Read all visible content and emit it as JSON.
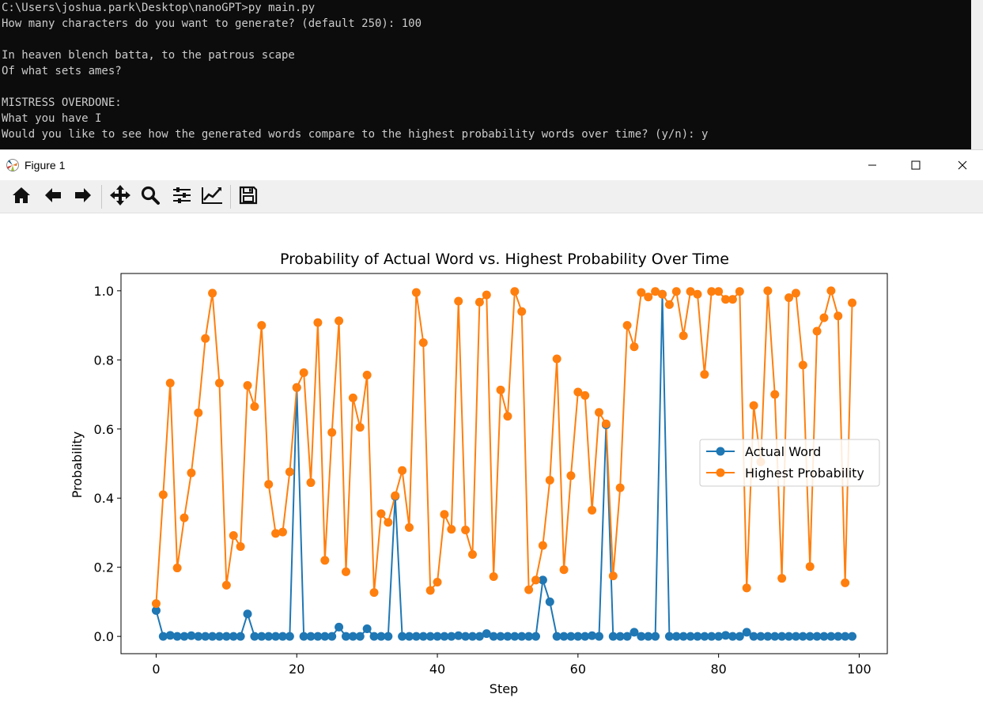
{
  "terminal": {
    "lines": [
      "C:\\Users\\joshua.park\\Desktop\\nanoGPT>py main.py",
      "How many characters do you want to generate? (default 250): 100",
      "",
      "In heaven blench batta, to the patrous scape",
      "Of what sets ames?",
      "",
      "MISTRESS OVERDONE:",
      "What you have I",
      "Would you like to see how the generated words compare to the highest probability words over time? (y/n): y"
    ]
  },
  "figure_window": {
    "title": "Figure 1",
    "icon": "matplotlib-icon",
    "controls": [
      "minimize-icon",
      "maximize-icon",
      "close-icon"
    ]
  },
  "toolbar": {
    "buttons": [
      "home-icon",
      "back-arrow-icon",
      "forward-arrow-icon",
      "pan-icon",
      "zoom-icon",
      "configure-subplots-icon",
      "edit-axes-icon",
      "save-icon"
    ]
  },
  "chart_data": {
    "type": "line",
    "title": "Probability of Actual Word vs. Highest Probability Over Time",
    "xlabel": "Step",
    "ylabel": "Probability",
    "xlim": [
      -5,
      104
    ],
    "ylim": [
      -0.05,
      1.05
    ],
    "xticks": [
      0,
      20,
      40,
      60,
      80,
      100
    ],
    "yticks": [
      0.0,
      0.2,
      0.4,
      0.6,
      0.8,
      1.0
    ],
    "xtick_labels": [
      "0",
      "20",
      "40",
      "60",
      "80",
      "100"
    ],
    "ytick_labels": [
      "0.0",
      "0.2",
      "0.4",
      "0.6",
      "0.8",
      "1.0"
    ],
    "legend_position": "center-right",
    "grid": false,
    "markers": "circle",
    "x": [
      0,
      1,
      2,
      3,
      4,
      5,
      6,
      7,
      8,
      9,
      10,
      11,
      12,
      13,
      14,
      15,
      16,
      17,
      18,
      19,
      20,
      21,
      22,
      23,
      24,
      25,
      26,
      27,
      28,
      29,
      30,
      31,
      32,
      33,
      34,
      35,
      36,
      37,
      38,
      39,
      40,
      41,
      42,
      43,
      44,
      45,
      46,
      47,
      48,
      49,
      50,
      51,
      52,
      53,
      54,
      55,
      56,
      57,
      58,
      59,
      60,
      61,
      62,
      63,
      64,
      65,
      66,
      67,
      68,
      69,
      70,
      71,
      72,
      73,
      74,
      75,
      76,
      77,
      78,
      79,
      80,
      81,
      82,
      83,
      84,
      85,
      86,
      87,
      88,
      89,
      90,
      91,
      92,
      93,
      94,
      95,
      96,
      97,
      98,
      99
    ],
    "series": [
      {
        "name": "Actual Word",
        "color": "#1f77b4",
        "values": [
          0.075,
          0.0,
          0.003,
          0.0,
          0.0,
          0.002,
          0.0,
          0.0,
          0.0,
          0.0,
          0.0,
          0.0,
          0.0,
          0.065,
          0.0,
          0.0,
          0.0,
          0.0,
          0.0,
          0.0,
          0.72,
          0.0,
          0.0,
          0.0,
          0.0,
          0.0,
          0.027,
          0.0,
          0.0,
          0.0,
          0.022,
          0.0,
          0.0,
          0.0,
          0.405,
          0.0,
          0.0,
          0.0,
          0.0,
          0.0,
          0.0,
          0.0,
          0.0,
          0.002,
          0.0,
          0.0,
          0.0,
          0.008,
          0.0,
          0.0,
          0.0,
          0.0,
          0.0,
          0.0,
          0.0,
          0.163,
          0.1,
          0.0,
          0.0,
          0.0,
          0.0,
          0.0,
          0.002,
          0.0,
          0.612,
          0.0,
          0.0,
          0.0,
          0.012,
          0.0,
          0.0,
          0.0,
          0.99,
          0.0,
          0.0,
          0.0,
          0.0,
          0.0,
          0.0,
          0.0,
          0.0,
          0.003,
          0.0,
          0.0,
          0.012,
          0.0,
          0.0,
          0.0,
          0.0,
          0.0,
          0.0,
          0.0,
          0.0,
          0.0,
          0.0,
          0.0,
          0.0,
          0.0,
          0.0,
          0.0
        ]
      },
      {
        "name": "Highest Probability",
        "color": "#ff7f0e",
        "values": [
          0.095,
          0.41,
          0.733,
          0.198,
          0.343,
          0.473,
          0.647,
          0.862,
          0.993,
          0.733,
          0.148,
          0.292,
          0.26,
          0.726,
          0.665,
          0.9,
          0.44,
          0.298,
          0.302,
          0.476,
          0.72,
          0.763,
          0.445,
          0.908,
          0.22,
          0.59,
          0.913,
          0.187,
          0.69,
          0.605,
          0.756,
          0.127,
          0.355,
          0.33,
          0.407,
          0.48,
          0.315,
          0.995,
          0.85,
          0.133,
          0.157,
          0.353,
          0.31,
          0.97,
          0.308,
          0.237,
          0.967,
          0.988,
          0.173,
          0.713,
          0.637,
          0.998,
          0.94,
          0.135,
          0.163,
          0.263,
          0.452,
          0.803,
          0.193,
          0.465,
          0.707,
          0.697,
          0.365,
          0.648,
          0.615,
          0.175,
          0.43,
          0.9,
          0.838,
          0.995,
          0.982,
          0.998,
          0.99,
          0.96,
          0.998,
          0.87,
          0.998,
          0.99,
          0.758,
          0.998,
          0.998,
          0.975,
          0.975,
          0.998,
          0.14,
          0.668,
          0.505,
          1.0,
          0.7,
          0.168,
          0.98,
          0.993,
          0.785,
          0.202,
          0.883,
          0.922,
          1.0,
          0.927,
          0.155,
          0.965
        ]
      }
    ]
  }
}
